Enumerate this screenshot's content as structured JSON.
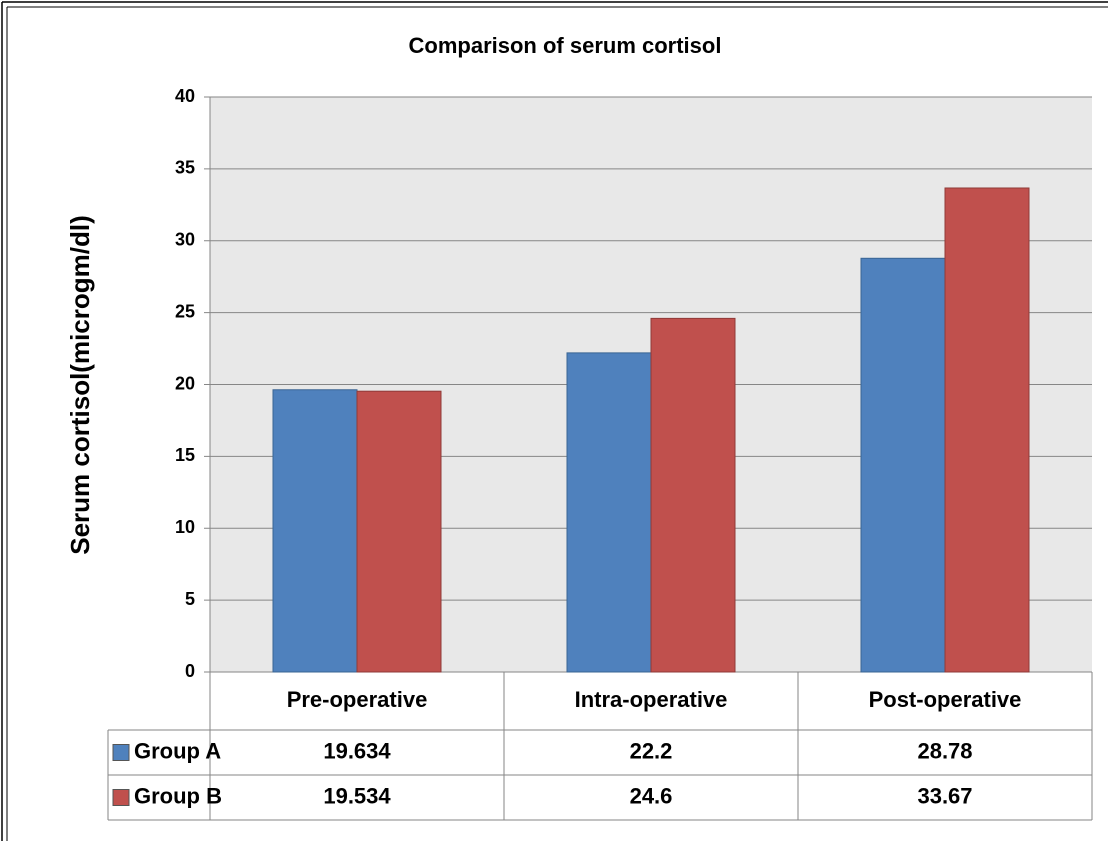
{
  "chart_data": {
    "type": "bar",
    "title": "Comparison of serum cortisol",
    "y_label": "Serum cortisol(microgm/dl)",
    "categories": [
      "Pre-operative",
      "Intra-operative",
      "Post-operative"
    ],
    "series": [
      {
        "name": "Group A",
        "color": "#4f81bd",
        "values": [
          19.634,
          22.2,
          28.78
        ]
      },
      {
        "name": "Group B",
        "color": "#c0504d",
        "values": [
          19.534,
          24.6,
          33.67
        ]
      }
    ],
    "ylim": [
      0,
      40
    ],
    "yticks": [
      0,
      5,
      10,
      15,
      20,
      25,
      30,
      35,
      40
    ],
    "grid": true,
    "data_table": true
  }
}
